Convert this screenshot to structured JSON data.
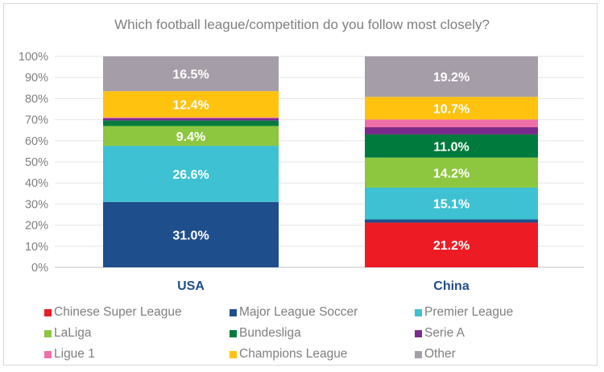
{
  "chart_data": {
    "type": "stacked-bar-100",
    "title": "Which football league/competition do you follow most closely?",
    "categories": [
      "USA",
      "China"
    ],
    "ylim": [
      0,
      100
    ],
    "yticks": [
      "0%",
      "10%",
      "20%",
      "30%",
      "40%",
      "50%",
      "60%",
      "70%",
      "80%",
      "90%",
      "100%"
    ],
    "grid": true,
    "legend_position": "bottom",
    "series": [
      {
        "name": "Chinese Super League",
        "color": "#ed1c24",
        "values": [
          0,
          21.2
        ],
        "labels": [
          "",
          "21.2%"
        ]
      },
      {
        "name": "Major League Soccer",
        "color": "#1f4e8c",
        "values": [
          31.0,
          1.5
        ],
        "labels": [
          "31.0%",
          ""
        ]
      },
      {
        "name": "Premier League",
        "color": "#3dc1d3",
        "values": [
          26.6,
          15.1
        ],
        "labels": [
          "26.6%",
          "15.1%"
        ]
      },
      {
        "name": "LaLiga",
        "color": "#8dc63f",
        "values": [
          9.4,
          14.2
        ],
        "labels": [
          "9.4%",
          "14.2%"
        ]
      },
      {
        "name": "Bundesliga",
        "color": "#007a3d",
        "values": [
          2.6,
          11.0
        ],
        "labels": [
          "",
          "11.0%"
        ]
      },
      {
        "name": "Serie A",
        "color": "#7b2a8c",
        "values": [
          1.0,
          3.4
        ],
        "labels": [
          "",
          ""
        ]
      },
      {
        "name": "Ligue 1",
        "color": "#f06fa8",
        "values": [
          0.5,
          3.7
        ],
        "labels": [
          "",
          ""
        ]
      },
      {
        "name": "Champions League",
        "color": "#ffc20e",
        "values": [
          12.4,
          10.7
        ],
        "labels": [
          "12.4%",
          "10.7%"
        ]
      },
      {
        "name": "Other",
        "color": "#a59da8",
        "values": [
          16.5,
          19.2
        ],
        "labels": [
          "16.5%",
          "19.2%"
        ]
      }
    ]
  }
}
